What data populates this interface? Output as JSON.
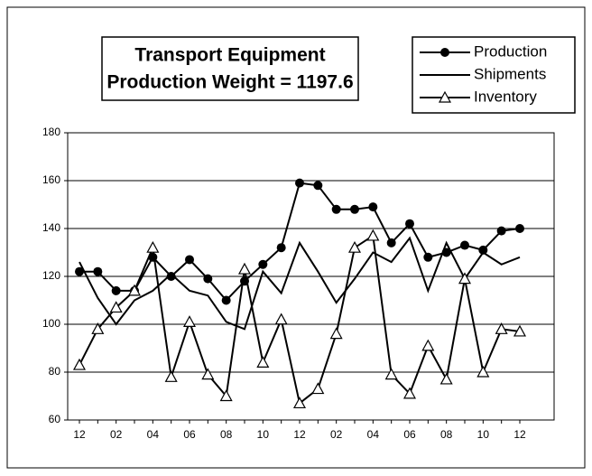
{
  "chart_data": {
    "type": "line",
    "title": "Transport Equipment",
    "subtitle": "Production Weight = 1197.6",
    "categories": [
      "12",
      null,
      "02",
      null,
      "04",
      null,
      "06",
      null,
      "08",
      null,
      "10",
      null,
      "12",
      null,
      "02",
      null,
      "04",
      null,
      "06",
      null,
      "08",
      null,
      "10",
      null,
      "12"
    ],
    "series": [
      {
        "name": "Production",
        "color": "#000000",
        "marker": "circle",
        "values": [
          122,
          122,
          114,
          114,
          128,
          120,
          127,
          119,
          110,
          118,
          125,
          132,
          159,
          158,
          148,
          148,
          149,
          134,
          142,
          128,
          130,
          133,
          131,
          139,
          140
        ]
      },
      {
        "name": "Shipments",
        "color": "#000000",
        "marker": "none",
        "values": [
          126,
          111,
          100,
          110,
          114,
          121,
          114,
          112,
          101,
          98,
          122,
          113,
          134,
          122,
          109,
          119,
          130,
          126,
          136,
          114,
          134,
          119,
          130,
          125,
          128
        ]
      },
      {
        "name": "Inventory",
        "color": "#000000",
        "marker": "triangle",
        "values": [
          83,
          98,
          107,
          114,
          132,
          78,
          101,
          79,
          70,
          123,
          84,
          102,
          67,
          73,
          96,
          132,
          137,
          79,
          71,
          91,
          77,
          119,
          80,
          98,
          97
        ]
      }
    ],
    "ylim": [
      60,
      180
    ],
    "yticks": [
      60,
      80,
      100,
      120,
      140,
      160,
      180
    ],
    "grid": true,
    "legend": "top-right"
  }
}
